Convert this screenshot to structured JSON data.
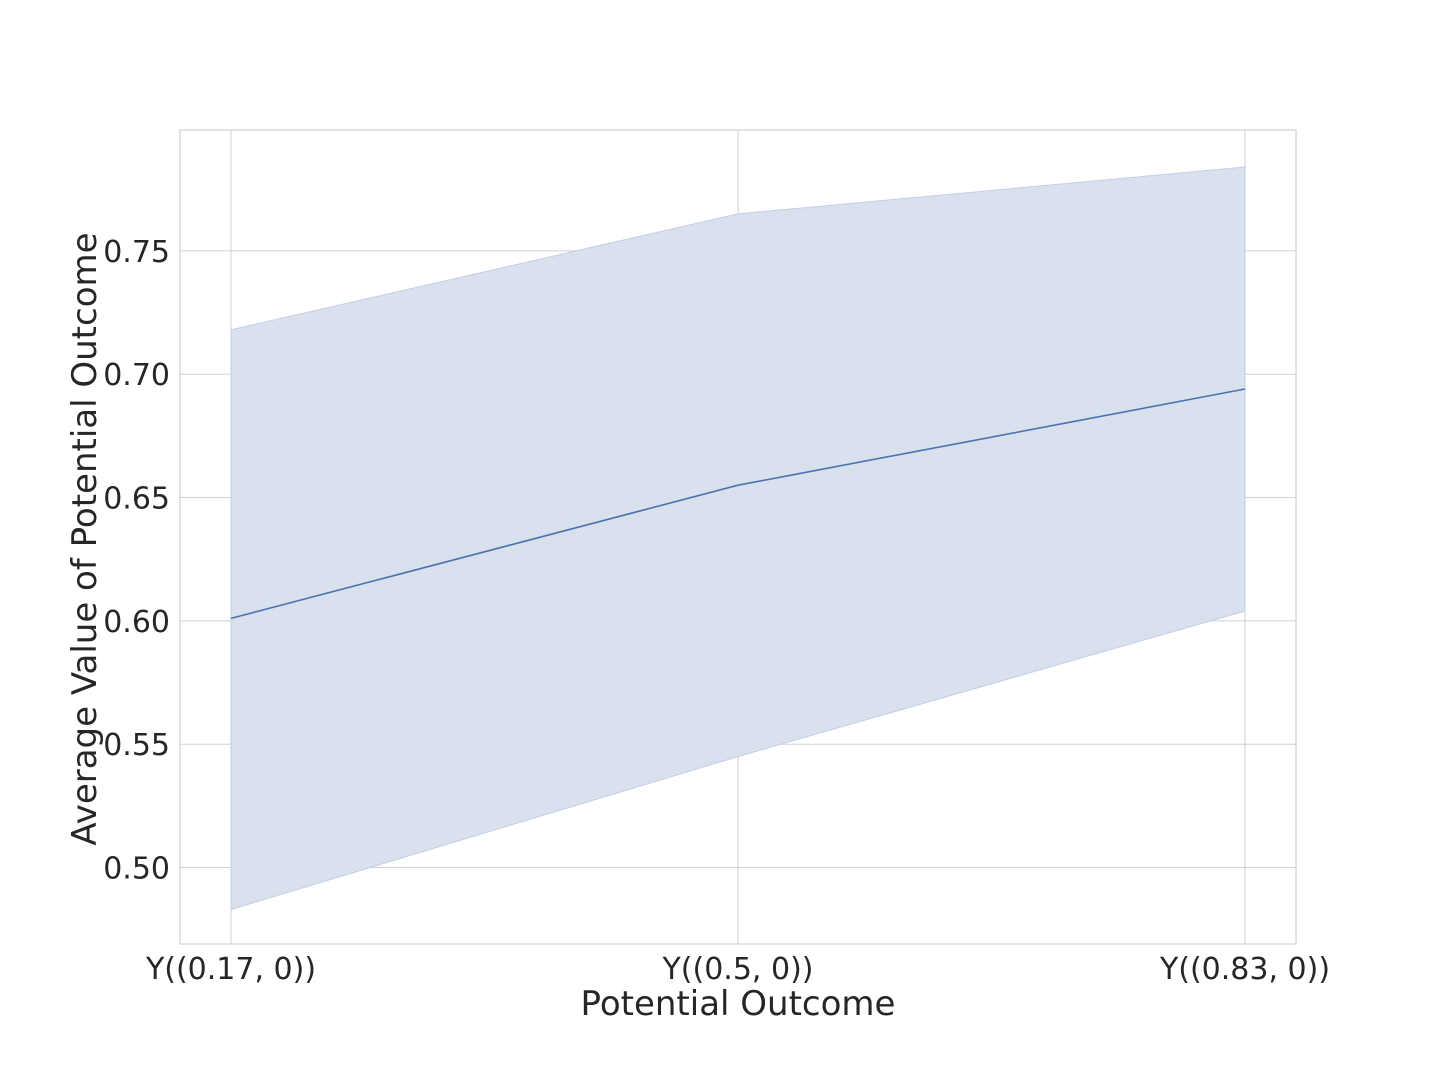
{
  "chart_data": {
    "type": "line",
    "title": "",
    "xlabel": "Potential Outcome",
    "ylabel": "Average Value of Potential Outcome",
    "categories": [
      "Y((0.17, 0))",
      "Y((0.5, 0))",
      "Y((0.83, 0))"
    ],
    "series": [
      {
        "values": [
          0.601,
          0.655,
          0.694
        ],
        "ci_lower": [
          0.483,
          0.545,
          0.604
        ],
        "ci_upper": [
          0.718,
          0.765,
          0.784
        ]
      }
    ],
    "ylim": [
      0.469,
      0.799
    ],
    "yticks": [
      "0.50",
      "0.55",
      "0.60",
      "0.65",
      "0.70",
      "0.75"
    ],
    "grid": true,
    "line_color": "#4c72b0",
    "band_color": "#dae1ee"
  }
}
